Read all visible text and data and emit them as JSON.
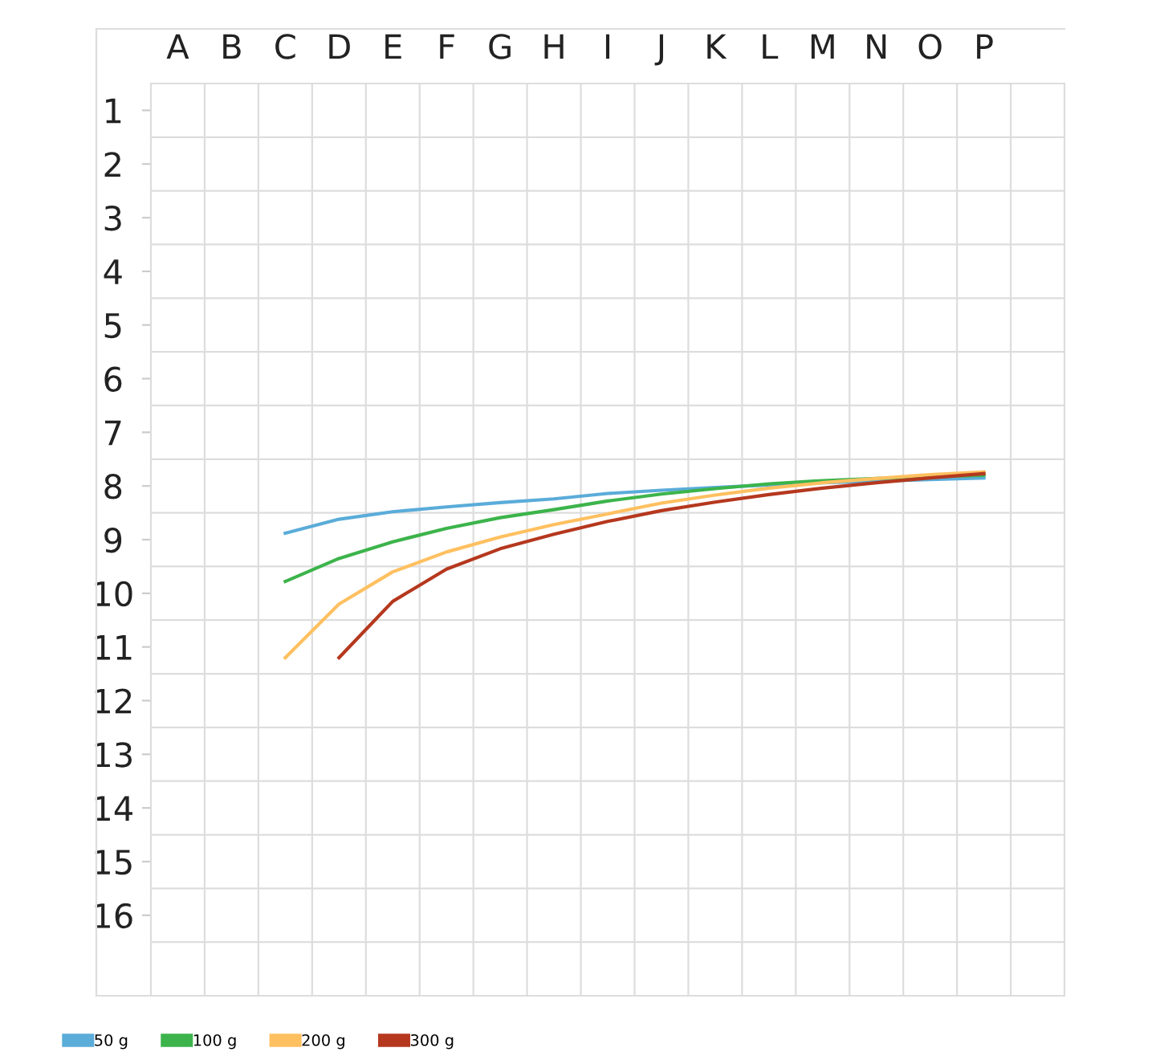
{
  "chart_data": {
    "type": "line",
    "categories": [
      "A",
      "B",
      "C",
      "D",
      "E",
      "F",
      "G",
      "H",
      "I",
      "J",
      "K",
      "L",
      "M",
      "N",
      "O",
      "P",
      null
    ],
    "ylim": [
      17.5,
      0.5
    ],
    "yticks": [
      1,
      2,
      3,
      4,
      5,
      6,
      7,
      8,
      9,
      10,
      11,
      12,
      13,
      14,
      15,
      16
    ],
    "grid": true,
    "legend": "bottom left",
    "marker": "none",
    "line_style": "solid",
    "series": [
      {
        "name": "50 g",
        "color": "#5aacd9",
        "values": [
          null,
          null,
          8.88,
          8.62,
          8.48,
          8.39,
          8.31,
          8.24,
          8.14,
          8.08,
          8.03,
          7.98,
          7.94,
          7.91,
          7.88,
          7.85,
          null
        ]
      },
      {
        "name": "100 g",
        "color": "#3cb44b",
        "values": [
          null,
          null,
          9.78,
          9.35,
          9.04,
          8.79,
          8.59,
          8.44,
          8.28,
          8.15,
          8.05,
          7.96,
          7.9,
          7.86,
          7.83,
          7.8,
          null
        ]
      },
      {
        "name": "200 g",
        "color": "#ffc060",
        "values": [
          null,
          null,
          11.2,
          10.2,
          9.6,
          9.23,
          8.95,
          8.72,
          8.52,
          8.32,
          8.17,
          8.04,
          7.94,
          7.86,
          7.79,
          7.74,
          null
        ]
      },
      {
        "name": "300 g",
        "color": "#b5381e",
        "values": [
          null,
          null,
          null,
          11.2,
          10.15,
          9.55,
          9.17,
          8.9,
          8.66,
          8.46,
          8.3,
          8.16,
          8.04,
          7.94,
          7.85,
          7.77,
          null
        ]
      }
    ]
  }
}
